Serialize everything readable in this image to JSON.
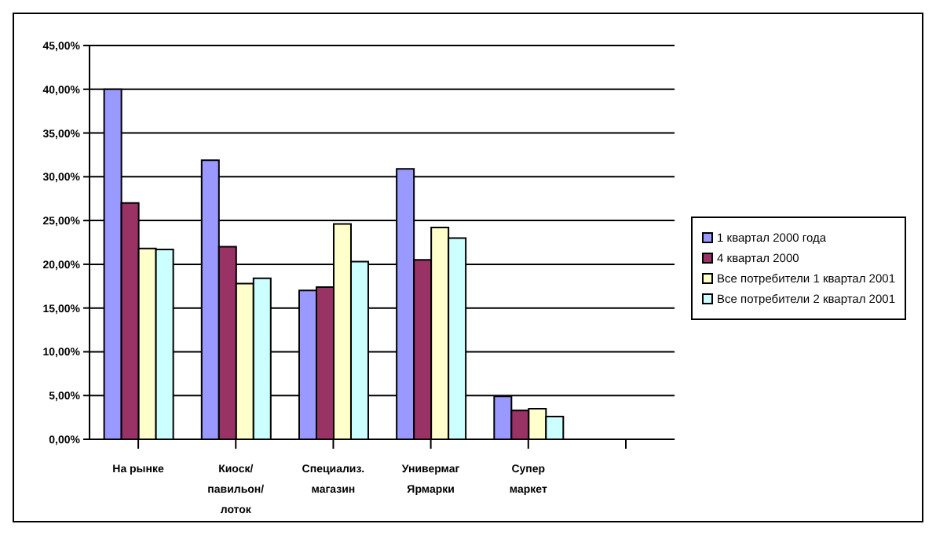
{
  "chart_data": {
    "type": "bar",
    "categories": [
      "На рынке",
      "Киоск/ павильон/ лоток",
      "Специализ. магазин",
      "Универмаг Ярмарки",
      "Супер маркет",
      null
    ],
    "series": [
      {
        "name": "1 квартал 2000 года",
        "color": "#9999ff",
        "values": [
          40.0,
          31.9,
          17.0,
          30.9,
          4.9,
          null
        ]
      },
      {
        "name": "4 квартал 2000",
        "color": "#993366",
        "values": [
          27.0,
          22.0,
          17.4,
          20.5,
          3.3,
          null
        ]
      },
      {
        "name": "Все потребители 1 квартал 2001",
        "color": "#ffffcc",
        "values": [
          21.8,
          17.8,
          24.6,
          24.2,
          3.5,
          null
        ]
      },
      {
        "name": "Все потребители 2 квартал 2001",
        "color": "#ccffff",
        "values": [
          21.7,
          18.4,
          20.3,
          23.0,
          2.6,
          null
        ]
      }
    ],
    "ylim": [
      0,
      45
    ],
    "yticks": [
      {
        "value": 0,
        "label": "0,00%"
      },
      {
        "value": 5,
        "label": "5,00%"
      },
      {
        "value": 10,
        "label": "10,00%"
      },
      {
        "value": 15,
        "label": "15,00%"
      },
      {
        "value": 20,
        "label": "20,00%"
      },
      {
        "value": 25,
        "label": "25,00%"
      },
      {
        "value": 30,
        "label": "30,00%"
      },
      {
        "value": 35,
        "label": "35,00%"
      },
      {
        "value": 40,
        "label": "40,00%"
      },
      {
        "value": 45,
        "label": "45,00%"
      }
    ],
    "grid": "y",
    "legend": "right"
  }
}
